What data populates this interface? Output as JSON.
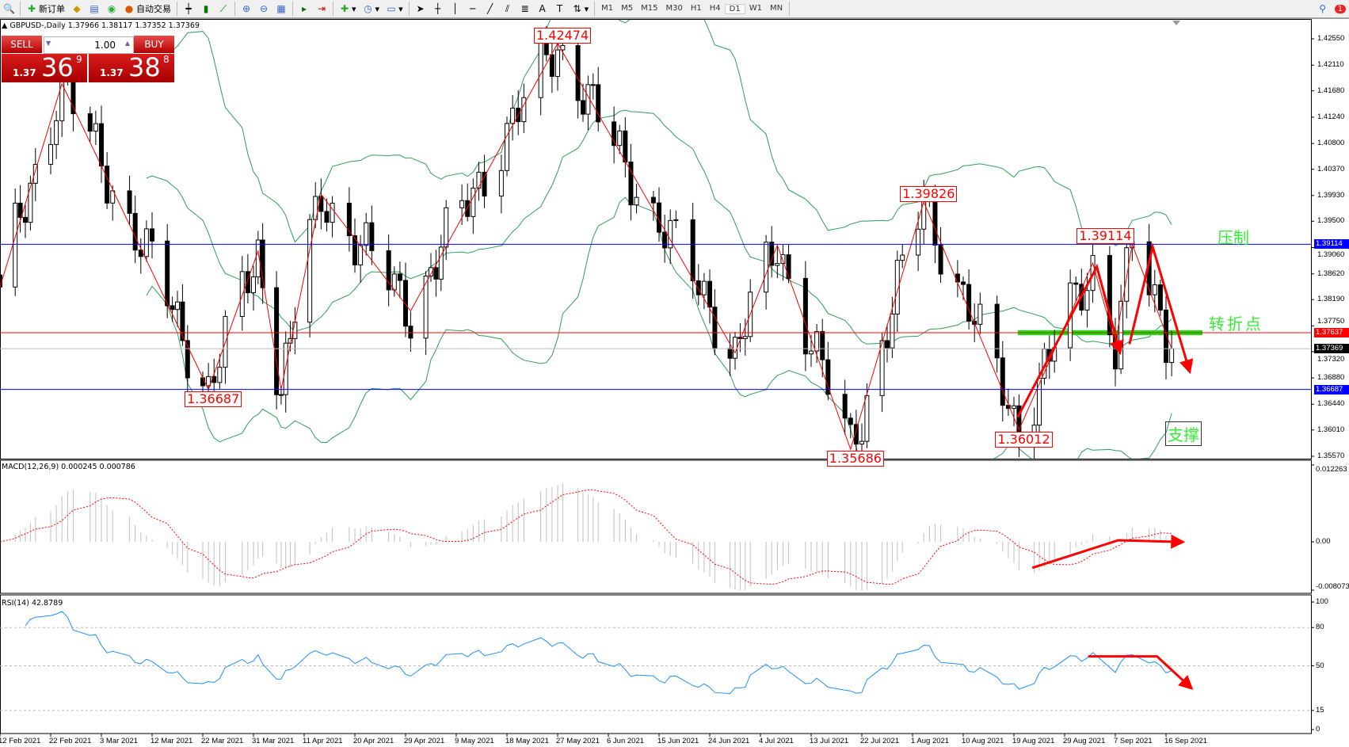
{
  "toolbar": {
    "new_order": "新订单",
    "auto_trade": "自动交易",
    "timeframes": [
      "M1",
      "M5",
      "M15",
      "M30",
      "H1",
      "H4",
      "D1",
      "W1",
      "MN"
    ],
    "active_timeframe": "D1",
    "notification_count": "1"
  },
  "chart": {
    "title": "GBPUSD-,Daily  1.37966 1.38117 1.37352 1.37369",
    "trade_panel": {
      "sell_label": "SELL",
      "buy_label": "BUY",
      "lot": "1.00",
      "sell_big": "1.37",
      "sell_main": "36",
      "sell_sup": "9",
      "buy_big": "1.37",
      "buy_main": "38",
      "buy_sup": "8"
    },
    "annotations": {
      "resistance": "压制",
      "turning_point": "转折点",
      "support": "支撑"
    },
    "colors": {
      "bullish_body": "#ffffff",
      "bearish_body": "#000000",
      "bollinger": "#2e9e5a",
      "zigzag": "#ff0000",
      "resistance_line": "#0000ff",
      "turning_line": "#ff0000",
      "green_bar": "#00ee00"
    }
  },
  "chart_data": [
    {
      "type": "candlestick",
      "symbol": "GBPUSD",
      "timeframe": "Daily",
      "ylim": [
        1.3557,
        1.4255
      ],
      "y_ticks": [
        "1.42550",
        "1.42110",
        "1.41680",
        "1.41240",
        "1.40800",
        "1.40370",
        "1.39930",
        "1.39500",
        "1.39060",
        "1.38620",
        "1.38190",
        "1.37750",
        "1.37320",
        "1.36880",
        "1.36440",
        "1.36010",
        "1.35570"
      ],
      "x_ticks": [
        "12 Feb 2021",
        "22 Feb 2021",
        "3 Mar 2021",
        "12 Mar 2021",
        "22 Mar 2021",
        "31 Mar 2021",
        "11 Apr 2021",
        "20 Apr 2021",
        "29 Apr 2021",
        "9 May 2021",
        "18 May 2021",
        "27 May 2021",
        "6 Jun 2021",
        "15 Jun 2021",
        "24 Jun 2021",
        "4 Jul 2021",
        "13 Jul 2021",
        "22 Jul 2021",
        "1 Aug 2021",
        "10 Aug 2021",
        "19 Aug 2021",
        "29 Aug 2021",
        "7 Sep 2021",
        "16 Sep 2021"
      ],
      "zigzag_pivots": [
        {
          "date": "2021-02-12",
          "price": 1.384
        },
        {
          "date": "2021-02-24",
          "price": 1.418
        },
        {
          "date": "2021-03-23",
          "price": 1.36687,
          "label": "1.36687"
        },
        {
          "date": "2021-04-01",
          "price": 1.39
        },
        {
          "date": "2021-04-06",
          "price": 1.36687
        },
        {
          "date": "2021-04-14",
          "price": 1.3995
        },
        {
          "date": "2021-04-30",
          "price": 1.38
        },
        {
          "date": "2021-05-27",
          "price": 1.42474,
          "label": "1.42474"
        },
        {
          "date": "2021-06-29",
          "price": 1.373
        },
        {
          "date": "2021-07-07",
          "price": 1.391
        },
        {
          "date": "2021-07-20",
          "price": 1.35686,
          "label": "1.35686"
        },
        {
          "date": "2021-08-03",
          "price": 1.39826,
          "label": "1.39826"
        },
        {
          "date": "2021-08-20",
          "price": 1.36012,
          "label": "1.36012"
        },
        {
          "date": "2021-09-03",
          "price": 1.388
        },
        {
          "date": "2021-09-07",
          "price": 1.3745
        },
        {
          "date": "2021-09-10",
          "price": 1.39114,
          "label": "1.39114"
        },
        {
          "date": "2021-09-17",
          "price": 1.37369
        }
      ],
      "horizontal_lines": [
        {
          "price": "1.39114",
          "color": "#0000ff"
        },
        {
          "price": "1.37637",
          "color": "#ff0000"
        },
        {
          "price": "1.37369",
          "color": "#000000"
        },
        {
          "price": "1.36687",
          "color": "#0000ff"
        }
      ],
      "indicators": [
        "Bollinger Bands"
      ]
    },
    {
      "type": "bar",
      "title": "MACD(12,26,9) 0.000245 0.000786",
      "ylim": [
        -0.008073,
        0.012263
      ],
      "y_ticks": [
        "0.012263",
        "0.00",
        "-0.008073"
      ],
      "series": [
        {
          "name": "MACD",
          "style": "histogram"
        },
        {
          "name": "Signal",
          "style": "dotted-line"
        }
      ]
    },
    {
      "type": "line",
      "title": "RSI(14) 42.8789",
      "ylim": [
        0,
        100
      ],
      "y_ticks": [
        "100",
        "80",
        "50",
        "15",
        "0"
      ]
    }
  ]
}
